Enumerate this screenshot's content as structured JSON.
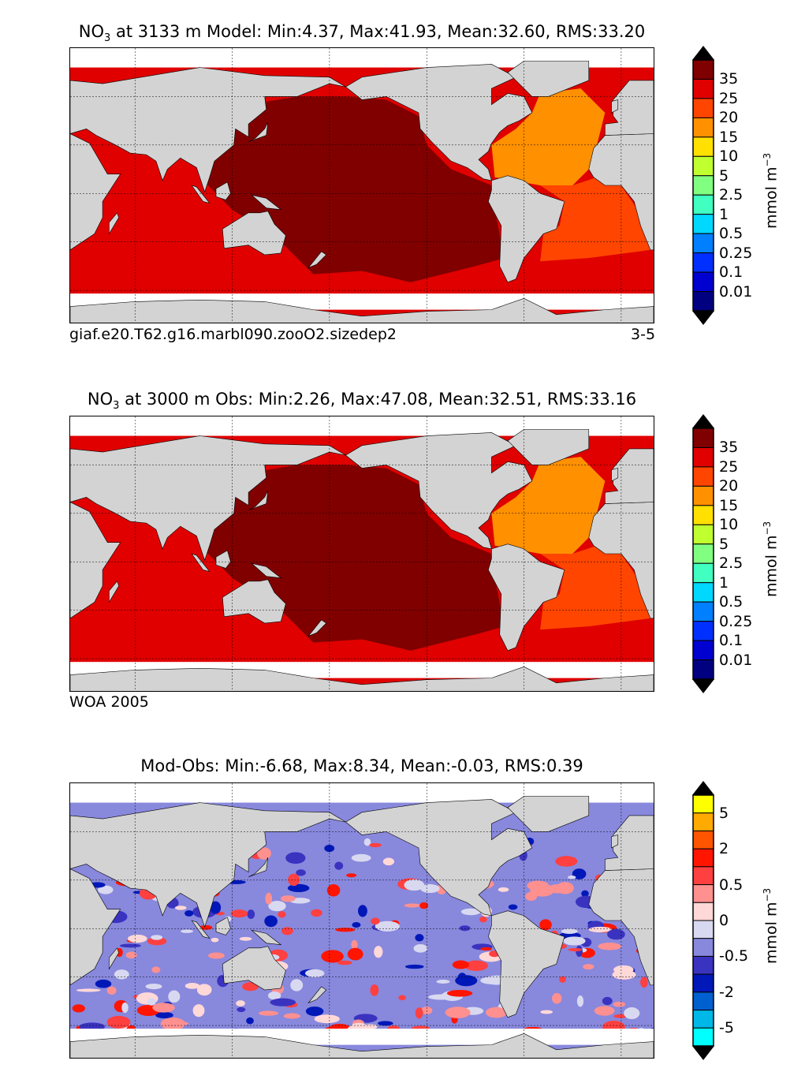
{
  "panels": [
    {
      "title": {
        "var": "NO",
        "sub": "3",
        "rest": " at 3133 m Model: Min:4.37, Max:41.93, Mean:32.60, RMS:33.20"
      },
      "footer_left": "giaf.e20.T62.g16.marbl090.zooO2.sizedep2",
      "footer_right": "3-5",
      "scheme": "model"
    },
    {
      "title": {
        "var": "NO",
        "sub": "3",
        "rest": " at 3000 m Obs: Min:2.26, Max:47.08, Mean:32.51, RMS:33.16"
      },
      "footer_left": "WOA 2005",
      "scheme": "obs"
    },
    {
      "title": {
        "var": "",
        "sub": "",
        "rest": "Mod-Obs: Min:-6.68, Max:8.34, Mean:-0.03, RMS:0.39"
      },
      "scheme": "diff"
    }
  ],
  "colorbars": [
    {
      "unit": "mmol m",
      "unit_exp": "−3",
      "colors": [
        "#800000",
        "#e00000",
        "#ff4500",
        "#ff9000",
        "#ffe000",
        "#c0ff30",
        "#80ff80",
        "#40ffc0",
        "#00d8ff",
        "#0080ff",
        "#0030ff",
        "#0000d0",
        "#000080"
      ],
      "labels": [
        "35",
        "25",
        "20",
        "15",
        "10",
        "5",
        "2.5",
        "1",
        "0.5",
        "0.25",
        "0.1",
        "0.01"
      ],
      "label_boundaries": [
        1,
        2,
        3,
        4,
        5,
        6,
        7,
        8,
        9,
        10,
        11,
        12
      ]
    },
    {
      "unit": "mmol m",
      "unit_exp": "−3",
      "colors": [
        "#800000",
        "#e00000",
        "#ff4500",
        "#ff9000",
        "#ffe000",
        "#c0ff30",
        "#80ff80",
        "#40ffc0",
        "#00d8ff",
        "#0080ff",
        "#0030ff",
        "#0000d0",
        "#000080"
      ],
      "labels": [
        "35",
        "25",
        "20",
        "15",
        "10",
        "5",
        "2.5",
        "1",
        "0.5",
        "0.25",
        "0.1",
        "0.01"
      ],
      "label_boundaries": [
        1,
        2,
        3,
        4,
        5,
        6,
        7,
        8,
        9,
        10,
        11,
        12
      ]
    },
    {
      "unit": "mmol m",
      "unit_exp": "−3",
      "colors": [
        "#ffff00",
        "#ffaa00",
        "#ff5500",
        "#ff1500",
        "#ff4040",
        "#ff9090",
        "#ffd8d8",
        "#d8d8f0",
        "#8888dd",
        "#3a33c0",
        "#0018b8",
        "#0060d0",
        "#00b8e8",
        "#00ffff"
      ],
      "labels": [
        "5",
        "2",
        "0.5",
        "0",
        "-0.5",
        "-2",
        "-5"
      ],
      "label_boundaries": [
        1,
        3,
        5,
        7,
        9,
        11,
        13
      ]
    }
  ]
}
